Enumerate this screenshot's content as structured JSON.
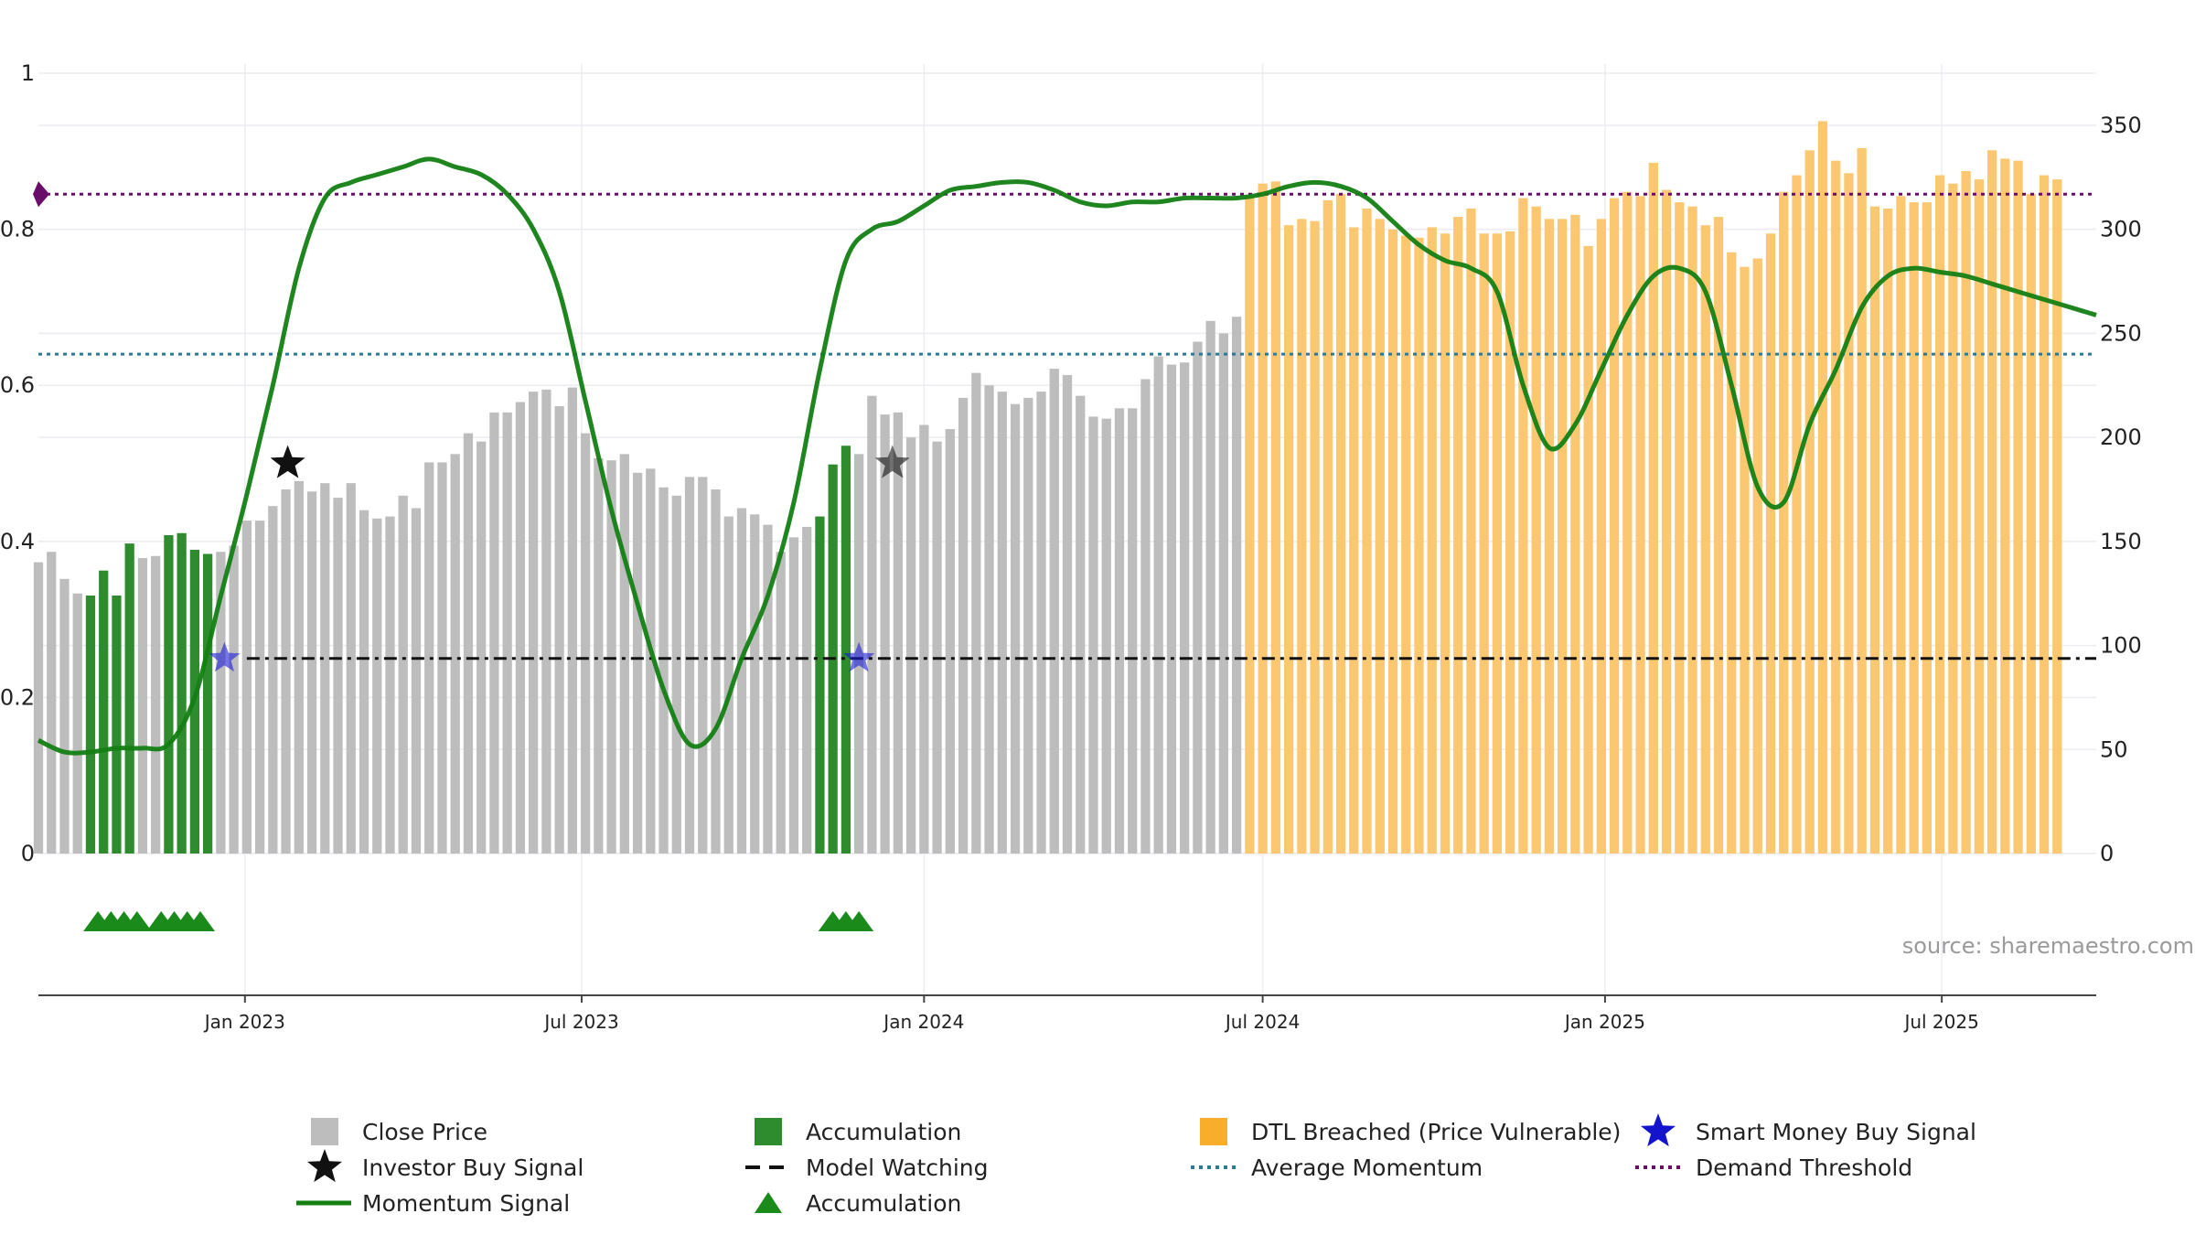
{
  "chart_data": {
    "type": "bar",
    "title": "",
    "xlabel": "",
    "ylabel_left": "",
    "ylabel_right": "",
    "left_axis": {
      "range": [
        0,
        1
      ],
      "ticks": [
        "0",
        "0.2",
        "0.4",
        "0.6",
        "0.8",
        "1"
      ],
      "tick_values": [
        0,
        0.2,
        0.4,
        0.6,
        0.8,
        1
      ]
    },
    "right_axis": {
      "range": [
        0,
        350
      ],
      "ticks": [
        "0",
        "50",
        "100",
        "150",
        "200",
        "250",
        "300",
        "350"
      ],
      "tick_values": [
        0,
        50,
        100,
        150,
        200,
        250,
        300,
        350
      ]
    },
    "x_axis": {
      "start": "2022-09-12",
      "end": "2025-09-22",
      "ticks": [
        {
          "label": "Jan 2023",
          "date": "2023-01-01"
        },
        {
          "label": "Jul 2023",
          "date": "2023-07-01"
        },
        {
          "label": "Jan 2024",
          "date": "2024-01-01"
        },
        {
          "label": "Jul 2024",
          "date": "2024-07-01"
        },
        {
          "label": "Jan 2025",
          "date": "2025-01-01"
        },
        {
          "label": "Jul 2025",
          "date": "2025-07-01"
        }
      ]
    },
    "grid": true,
    "legend_position": "bottom",
    "source_text": "source: sharemaestro.com",
    "bar_start_date": "2022-09-12",
    "bar_interval_days": 7,
    "series": [
      {
        "name": "Close Price",
        "type": "bar",
        "axis": "right",
        "color": "#bdbdbd",
        "values": [
          140,
          145,
          132,
          125,
          124,
          136,
          124,
          149,
          142,
          143,
          153,
          154,
          146,
          144,
          145,
          148,
          160,
          160,
          167,
          175,
          179,
          174,
          178,
          171,
          178,
          165,
          161,
          162,
          172,
          166,
          188,
          188,
          192,
          202,
          198,
          212,
          212,
          217,
          222,
          223,
          215,
          224,
          202,
          190,
          189,
          192,
          183,
          185,
          176,
          172,
          181,
          181,
          175,
          162,
          166,
          163,
          158,
          145,
          152,
          157,
          162,
          187,
          196,
          192,
          220,
          211,
          212,
          200,
          206,
          198,
          204,
          219,
          231,
          225,
          222,
          216,
          219,
          222,
          233,
          230,
          220,
          210,
          209,
          214,
          214,
          228,
          239,
          235,
          236,
          246,
          256,
          250,
          258,
          316,
          322,
          323,
          302,
          305,
          304,
          314,
          317,
          301,
          310,
          305,
          300,
          297,
          296,
          301,
          298,
          306,
          310,
          298,
          298,
          299,
          315,
          311,
          305,
          305,
          307,
          292,
          305,
          315,
          318,
          316,
          332,
          319,
          313,
          311,
          302,
          306,
          289,
          282,
          286,
          298,
          318,
          326,
          338,
          352,
          333,
          327,
          339,
          311,
          310,
          316,
          313,
          313,
          326,
          322,
          328,
          324,
          338,
          334,
          333,
          317,
          326,
          324
        ]
      },
      {
        "name": "Accumulation",
        "type": "bar-highlight",
        "color": "#2e8b2e",
        "indices": [
          4,
          5,
          6,
          7,
          10,
          11,
          12,
          13,
          60,
          61,
          62
        ]
      },
      {
        "name": "DTL Breached (Price Vulnerable)",
        "type": "bar-highlight",
        "color": "#fbc770",
        "indices": [
          93,
          94,
          95,
          96,
          97,
          98,
          99,
          100,
          101,
          102,
          103,
          104,
          105,
          106,
          107,
          108,
          109,
          110,
          111,
          112,
          113,
          114,
          115,
          116,
          117,
          118,
          119,
          120,
          121,
          122,
          123,
          124,
          125,
          126,
          127,
          128,
          129,
          130,
          131,
          132,
          133,
          134,
          135,
          136,
          137,
          138,
          139,
          140,
          141,
          142,
          143,
          144,
          145,
          146,
          147,
          148,
          149,
          150,
          151,
          152,
          153,
          154,
          155
        ]
      },
      {
        "name": "Momentum Signal",
        "type": "line",
        "axis": "left",
        "color": "#137f13",
        "x_dates": [
          "2022-09-12",
          "2022-09-26",
          "2022-10-10",
          "2022-10-24",
          "2022-11-07",
          "2022-11-21",
          "2022-12-05",
          "2022-12-19",
          "2023-01-02",
          "2023-01-16",
          "2023-01-30",
          "2023-02-13",
          "2023-02-27",
          "2023-03-13",
          "2023-03-27",
          "2023-04-10",
          "2023-04-24",
          "2023-05-08",
          "2023-05-22",
          "2023-06-05",
          "2023-06-19",
          "2023-07-03",
          "2023-07-17",
          "2023-07-31",
          "2023-08-14",
          "2023-08-28",
          "2023-09-11",
          "2023-09-25",
          "2023-10-09",
          "2023-10-23",
          "2023-11-06",
          "2023-11-20",
          "2023-12-04",
          "2023-12-18",
          "2024-01-01",
          "2024-01-15",
          "2024-01-29",
          "2024-02-12",
          "2024-02-26",
          "2024-03-11",
          "2024-03-25",
          "2024-04-08",
          "2024-04-22",
          "2024-05-06",
          "2024-05-20",
          "2024-06-03",
          "2024-06-17",
          "2024-07-01",
          "2024-07-15",
          "2024-07-29",
          "2024-08-12",
          "2024-08-26",
          "2024-09-09",
          "2024-09-23",
          "2024-10-07",
          "2024-10-21",
          "2024-11-04",
          "2024-11-18",
          "2024-12-02",
          "2024-12-16",
          "2024-12-30",
          "2025-01-13",
          "2025-01-27",
          "2025-02-10",
          "2025-02-24",
          "2025-03-10",
          "2025-03-24",
          "2025-04-07",
          "2025-04-21",
          "2025-05-05",
          "2025-05-19",
          "2025-06-02",
          "2025-06-16",
          "2025-06-30",
          "2025-07-14",
          "2025-07-28",
          "2025-08-11",
          "2025-08-25",
          "2025-09-08",
          "2025-09-22"
        ],
        "values": [
          0.145,
          0.13,
          0.13,
          0.135,
          0.135,
          0.14,
          0.2,
          0.33,
          0.46,
          0.6,
          0.75,
          0.84,
          0.86,
          0.87,
          0.88,
          0.89,
          0.88,
          0.87,
          0.845,
          0.8,
          0.72,
          0.58,
          0.44,
          0.32,
          0.21,
          0.14,
          0.16,
          0.25,
          0.33,
          0.45,
          0.62,
          0.76,
          0.8,
          0.81,
          0.83,
          0.85,
          0.855,
          0.86,
          0.86,
          0.85,
          0.835,
          0.83,
          0.835,
          0.835,
          0.84,
          0.84,
          0.84,
          0.845,
          0.855,
          0.86,
          0.855,
          0.84,
          0.81,
          0.78,
          0.76,
          0.75,
          0.72,
          0.6,
          0.52,
          0.55,
          0.62,
          0.69,
          0.74,
          0.75,
          0.72,
          0.6,
          0.47,
          0.45,
          0.55,
          0.62,
          0.7,
          0.74,
          0.75,
          0.745,
          0.74,
          0.73,
          0.72,
          0.71,
          0.7,
          0.69
        ]
      },
      {
        "name": "Model Watching",
        "type": "hline",
        "axis": "left",
        "value": 0.25,
        "start_date": "2023-01-02",
        "color": "#111111"
      },
      {
        "name": "Average Momentum",
        "type": "hline",
        "axis": "left",
        "value": 0.64,
        "color": "#2b7a9a"
      },
      {
        "name": "Demand Threshold",
        "type": "hline",
        "axis": "left",
        "value": 0.845,
        "color": "#6a0d6a"
      },
      {
        "name": "Investor Buy Signal",
        "type": "marker",
        "axis": "left",
        "color": "#111111",
        "points": [
          {
            "x": "2023-01-24",
            "y": 0.5
          },
          {
            "x": "2023-12-15",
            "y": 0.5
          }
        ]
      },
      {
        "name": "Smart Money Buy Signal",
        "type": "marker",
        "axis": "left",
        "color": "#1b1bd6",
        "points": [
          {
            "x": "2022-12-21",
            "y": 0.25
          },
          {
            "x": "2023-11-27",
            "y": 0.25
          }
        ]
      },
      {
        "name": "Accumulation",
        "type": "triangle-markers",
        "color": "#1a8a1a",
        "x_dates": [
          "2022-10-14",
          "2022-10-21",
          "2022-10-28",
          "2022-11-04",
          "2022-11-17",
          "2022-11-24",
          "2022-12-01",
          "2022-12-08",
          "2023-11-13",
          "2023-11-20",
          "2023-11-27"
        ]
      }
    ],
    "legend": [
      {
        "label": "Close Price",
        "kind": "square",
        "color": "#bdbdbd"
      },
      {
        "label": "Accumulation",
        "kind": "square",
        "color": "#2e8b2e"
      },
      {
        "label": "DTL Breached (Price Vulnerable)",
        "kind": "square",
        "color": "#f8ad2b"
      },
      {
        "label": "Smart Money Buy Signal",
        "kind": "star",
        "color": "#1414cc"
      },
      {
        "label": "Investor Buy Signal",
        "kind": "star",
        "color": "#111111"
      },
      {
        "label": "Model Watching",
        "kind": "dash",
        "color": "#111111"
      },
      {
        "label": "Average Momentum",
        "kind": "dot",
        "color": "#2b7a9a"
      },
      {
        "label": "Demand Threshold",
        "kind": "dot",
        "color": "#6a0d6a"
      },
      {
        "label": "Momentum Signal",
        "kind": "line",
        "color": "#137f13"
      },
      {
        "label": "Accumulation",
        "kind": "triangle",
        "color": "#1a8a1a"
      }
    ]
  }
}
